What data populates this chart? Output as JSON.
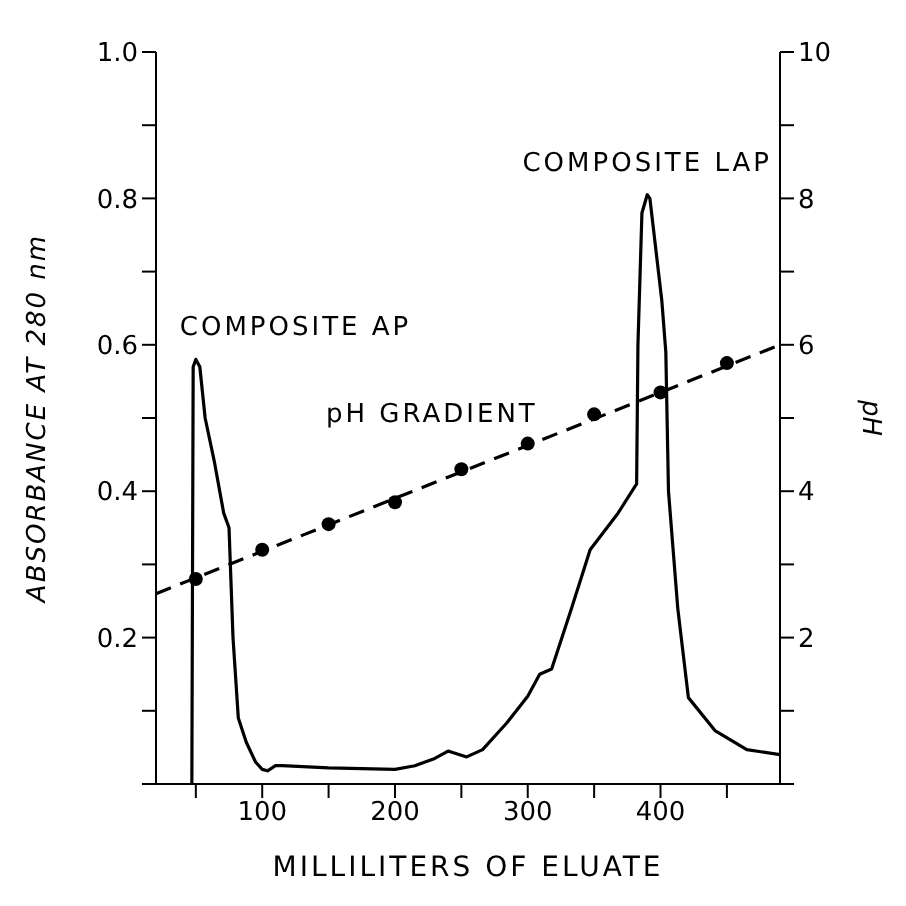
{
  "chart_data": {
    "type": "line",
    "xlabel": "MILLILITERS OF ELUATE",
    "ylabel": "ABSORBANCE  AT  280 nm",
    "y2label": "pH",
    "xlim": [
      20,
      490
    ],
    "xticks": [
      {
        "value": 50,
        "label": null
      },
      100,
      {
        "value": 150,
        "label": null
      },
      200,
      {
        "value": 250,
        "label": null
      },
      300,
      {
        "value": 350,
        "label": null
      },
      400,
      {
        "value": 450,
        "label": null
      }
    ],
    "ylim": [
      0,
      1
    ],
    "yticks": [
      {
        "value": 0,
        "label": null
      },
      {
        "value": 0.1,
        "label": null
      },
      {
        "value": 0.2,
        "label": "0.2"
      },
      {
        "value": 0.3,
        "label": null
      },
      {
        "value": 0.4,
        "label": "0.4"
      },
      {
        "value": 0.5,
        "label": null
      },
      {
        "value": 0.6,
        "label": "0.6"
      },
      {
        "value": 0.7,
        "label": null
      },
      {
        "value": 0.8,
        "label": "0.8"
      },
      {
        "value": 0.9,
        "label": null
      },
      {
        "value": 1,
        "label": "1.0"
      }
    ],
    "y2lim": [
      0,
      10
    ],
    "y2ticks": [
      {
        "value": 0,
        "label": null
      },
      {
        "value": 1,
        "label": null
      },
      2,
      {
        "value": 3,
        "label": null
      },
      4,
      {
        "value": 5,
        "label": null
      },
      6,
      {
        "value": 7,
        "label": null
      },
      8,
      {
        "value": 9,
        "label": null
      },
      10
    ],
    "grid": false,
    "series": [
      {
        "color": "#000000",
        "line_style": "solid",
        "marker": "none",
        "x": [
          47,
          48,
          50,
          53,
          57,
          64,
          71,
          75,
          78,
          82,
          88,
          95,
          100,
          104,
          110,
          115,
          150,
          200,
          215,
          230,
          240,
          254,
          266,
          284,
          300,
          309,
          318,
          333,
          347,
          368,
          382,
          383,
          386,
          390,
          392,
          401,
          404,
          406,
          413,
          421,
          441,
          465,
          490
        ],
        "values": [
          0,
          0.57,
          0.58,
          0.57,
          0.5,
          0.44,
          0.37,
          0.35,
          0.2,
          0.09,
          0.057,
          0.03,
          0.02,
          0.018,
          0.025,
          0.025,
          0.022,
          0.02,
          0.025,
          0.035,
          0.045,
          0.037,
          0.047,
          0.083,
          0.12,
          0.15,
          0.157,
          0.24,
          0.32,
          0.37,
          0.41,
          0.6,
          0.78,
          0.805,
          0.8,
          0.66,
          0.59,
          0.4,
          0.24,
          0.118,
          0.073,
          0.047,
          0.04
        ]
      },
      {
        "type": "scatter",
        "axis": "y2",
        "color": "#000000",
        "marker": "circle",
        "x": [
          50,
          100,
          150,
          200,
          250,
          300,
          350,
          400,
          450
        ],
        "values": [
          2.8,
          3.2,
          3.55,
          3.85,
          4.3,
          4.65,
          5.05,
          5.35,
          5.75
        ]
      },
      {
        "type": "line",
        "axis": "y2",
        "color": "#000000",
        "line_style": "dashed",
        "marker": "none",
        "x": [
          20,
          490
        ],
        "values": [
          2.6,
          6.0
        ]
      }
    ],
    "annotations": [
      {
        "text": "COMPOSITE AP",
        "x": 50,
        "y": 0.58
      },
      {
        "text": "COMPOSITE LAP",
        "x": 390,
        "y": 0.805
      },
      "pH GRADIENT"
    ]
  }
}
